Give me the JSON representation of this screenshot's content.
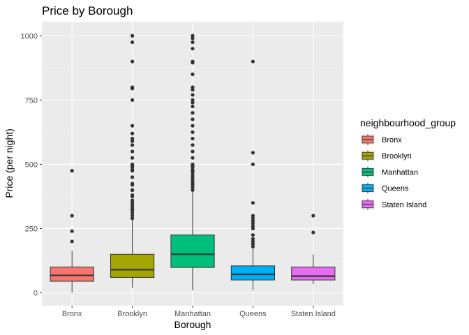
{
  "chart_data": {
    "type": "boxplot",
    "title": "Price by Borough",
    "xlabel": "Borough",
    "ylabel": "Price (per night)",
    "ylim": [
      -50,
      1055
    ],
    "yticks": [
      0,
      250,
      500,
      750,
      1000
    ],
    "grid": true,
    "legend": {
      "title": "neighbourhood_group",
      "position": "right"
    },
    "categories": [
      "Bronx",
      "Brooklyn",
      "Manhattan",
      "Queens",
      "Staten Island"
    ],
    "colors": [
      "#F8766D",
      "#A3A500",
      "#00BF7D",
      "#00B0F6",
      "#E76BF3"
    ],
    "boxes": [
      {
        "name": "Bronx",
        "min": 0,
        "q1": 45,
        "median": 68,
        "q3": 100,
        "max": 163,
        "outliers": [
          200,
          240,
          300,
          475
        ]
      },
      {
        "name": "Brooklyn",
        "min": 20,
        "q1": 60,
        "median": 90,
        "q3": 150,
        "max": 285,
        "outliers": [
          290,
          300,
          310,
          320,
          325,
          330,
          340,
          350,
          360,
          375,
          380,
          399,
          400,
          420,
          425,
          450,
          475,
          480,
          490,
          495,
          500,
          525,
          550,
          575,
          590,
          600,
          620,
          650,
          750,
          795,
          800,
          900,
          975,
          1000
        ]
      },
      {
        "name": "Manhattan",
        "min": 10,
        "q1": 99,
        "median": 150,
        "q3": 225,
        "max": 395,
        "outliers": [
          400,
          410,
          420,
          425,
          430,
          440,
          450,
          460,
          470,
          475,
          480,
          490,
          495,
          500,
          525,
          550,
          575,
          600,
          625,
          650,
          675,
          700,
          725,
          740,
          750,
          770,
          790,
          800,
          850,
          895,
          900,
          950,
          975,
          990,
          1000
        ]
      },
      {
        "name": "Queens",
        "min": 10,
        "q1": 50,
        "median": 72,
        "q3": 105,
        "max": 175,
        "outliers": [
          180,
          190,
          199,
          200,
          210,
          225,
          250,
          260,
          270,
          280,
          290,
          300,
          350,
          500,
          545,
          900
        ]
      },
      {
        "name": "Staten Island",
        "min": 35,
        "q1": 50,
        "median": 65,
        "q3": 100,
        "max": 150,
        "outliers": [
          235,
          300
        ]
      }
    ]
  }
}
